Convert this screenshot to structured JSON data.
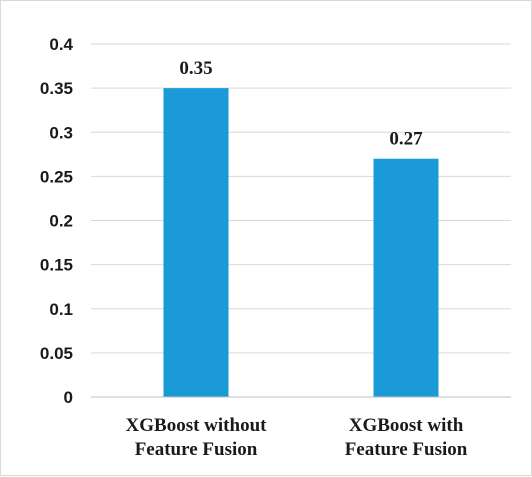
{
  "chart_data": {
    "type": "bar",
    "categories": [
      [
        "XGBoost without",
        "Feature Fusion"
      ],
      [
        "XGBoost with",
        "Feature Fusion"
      ]
    ],
    "values": [
      0.35,
      0.27
    ],
    "data_labels": [
      "0.35",
      "0.27"
    ],
    "yticks": [
      "0",
      "0.05",
      "0.1",
      "0.15",
      "0.2",
      "0.25",
      "0.3",
      "0.35",
      "0.4"
    ],
    "ylim": [
      0,
      0.4
    ],
    "title": "",
    "xlabel": "",
    "ylabel": "",
    "grid": true,
    "bar_color": "#1a9ad6"
  }
}
